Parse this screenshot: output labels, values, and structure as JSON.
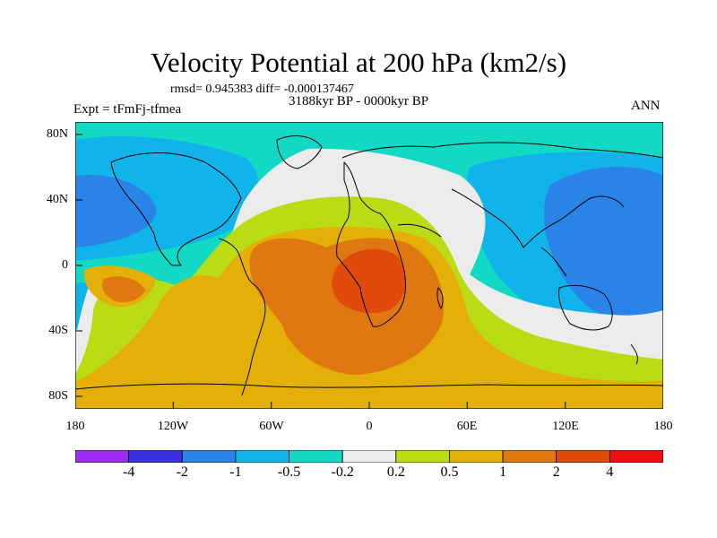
{
  "header": {
    "title": "Velocity Potential at 200 hPa (km2/s)",
    "stats": "rmsd= 0.945383 diff= -0.000137467",
    "period": "3188kyr BP - 0000kyr BP",
    "experiment": "Expt = tFmFj-tfmea",
    "season": "ANN"
  },
  "axes": {
    "lon_labels": [
      "180",
      "120W",
      "60W",
      "0",
      "60E",
      "120E",
      "180"
    ],
    "lat_labels": [
      "80N",
      "40N",
      "0",
      "40S",
      "80S"
    ]
  },
  "colorbar": {
    "labels": [
      "-4",
      "-2",
      "-1",
      "-0.5",
      "-0.2",
      "0.2",
      "0.5",
      "1",
      "2",
      "4"
    ],
    "colors": [
      "#9a2cf0",
      "#3a30e0",
      "#2a84e8",
      "#11b4ea",
      "#12d9c4",
      "#ececec",
      "#b9dc14",
      "#e4b008",
      "#e07812",
      "#e04b0c",
      "#ee1010"
    ]
  },
  "map": {
    "colors": {
      "v_neg2": "#2a84e8",
      "v_neg1": "#11b4ea",
      "v_neg05": "#12d9c4",
      "v_zero": "#ececec",
      "v_pos02": "#b9dc14",
      "v_pos05": "#e4b008",
      "v_pos1": "#e07812",
      "v_pos2": "#e04b0c"
    }
  }
}
